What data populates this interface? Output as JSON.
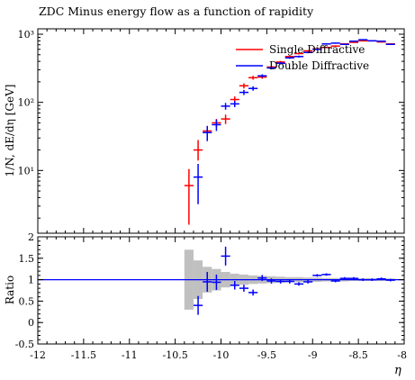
{
  "chart_data": [
    {
      "type": "scatter",
      "title": "ZDC Minus energy flow as a function of rapidity",
      "ylabel": "1/N, dE/dη [GeV]",
      "yscale": "log",
      "ylim": [
        1.2,
        1200
      ],
      "xlim": [
        -12,
        -8
      ],
      "y_ticks": [
        {
          "value": 10,
          "label": "10¹"
        },
        {
          "value": 100,
          "label": "10²"
        },
        {
          "value": 1000,
          "label": "10³"
        }
      ],
      "legend": {
        "placement": "top-right"
      },
      "series": [
        {
          "name": "Single Diffractive",
          "color": "#ff0000",
          "points": [
            {
              "x": -10.35,
              "y": 6,
              "ylo": 1.6,
              "yhi": 10.5
            },
            {
              "x": -10.25,
              "y": 20,
              "ylo": 14,
              "yhi": 28
            },
            {
              "x": -10.15,
              "y": 38,
              "ylo": 31,
              "yhi": 45
            },
            {
              "x": -10.05,
              "y": 50,
              "ylo": 43,
              "yhi": 57
            },
            {
              "x": -9.95,
              "y": 57,
              "ylo": 48,
              "yhi": 66
            },
            {
              "x": -9.85,
              "y": 110,
              "ylo": 98,
              "yhi": 122
            },
            {
              "x": -9.75,
              "y": 175,
              "ylo": 160,
              "yhi": 190
            },
            {
              "x": -9.65,
              "y": 230,
              "ylo": 215,
              "yhi": 245
            },
            {
              "x": -9.55,
              "y": 235,
              "ylo": 222,
              "yhi": 248
            },
            {
              "x": -9.45,
              "y": 330,
              "ylo": 315,
              "yhi": 345
            },
            {
              "x": -9.35,
              "y": 390,
              "ylo": 375,
              "yhi": 405
            },
            {
              "x": -9.25,
              "y": 470,
              "ylo": 455,
              "yhi": 485
            },
            {
              "x": -9.15,
              "y": 520,
              "ylo": 505,
              "yhi": 535
            },
            {
              "x": -9.05,
              "y": 570,
              "ylo": 555,
              "yhi": 585
            },
            {
              "x": -8.95,
              "y": 610,
              "ylo": 595,
              "yhi": 625
            },
            {
              "x": -8.85,
              "y": 640,
              "ylo": 625,
              "yhi": 655
            },
            {
              "x": -8.75,
              "y": 670,
              "ylo": 655,
              "yhi": 685
            },
            {
              "x": -8.65,
              "y": 720,
              "ylo": 705,
              "yhi": 735
            },
            {
              "x": -8.55,
              "y": 760,
              "ylo": 745,
              "yhi": 775
            },
            {
              "x": -8.45,
              "y": 800,
              "ylo": 785,
              "yhi": 815
            },
            {
              "x": -8.35,
              "y": 800,
              "ylo": 785,
              "yhi": 815
            },
            {
              "x": -8.25,
              "y": 770,
              "ylo": 755,
              "yhi": 785
            },
            {
              "x": -8.15,
              "y": 720,
              "ylo": 705,
              "yhi": 735
            }
          ]
        },
        {
          "name": "Double Diffractive",
          "color": "#0000ff",
          "points": [
            {
              "x": -10.25,
              "y": 8,
              "ylo": 3.2,
              "yhi": 12.5
            },
            {
              "x": -10.15,
              "y": 36,
              "ylo": 27,
              "yhi": 45
            },
            {
              "x": -10.05,
              "y": 47,
              "ylo": 38,
              "yhi": 56
            },
            {
              "x": -9.95,
              "y": 88,
              "ylo": 78,
              "yhi": 98
            },
            {
              "x": -9.85,
              "y": 95,
              "ylo": 85,
              "yhi": 105
            },
            {
              "x": -9.75,
              "y": 140,
              "ylo": 128,
              "yhi": 152
            },
            {
              "x": -9.65,
              "y": 160,
              "ylo": 148,
              "yhi": 172
            },
            {
              "x": -9.55,
              "y": 245,
              "ylo": 232,
              "yhi": 258
            },
            {
              "x": -9.45,
              "y": 320,
              "ylo": 305,
              "yhi": 335
            },
            {
              "x": -9.35,
              "y": 375,
              "ylo": 360,
              "yhi": 390
            },
            {
              "x": -9.25,
              "y": 450,
              "ylo": 435,
              "yhi": 465
            },
            {
              "x": -9.15,
              "y": 470,
              "ylo": 455,
              "yhi": 485
            },
            {
              "x": -9.05,
              "y": 540,
              "ylo": 525,
              "yhi": 555
            },
            {
              "x": -8.95,
              "y": 600,
              "ylo": 585,
              "yhi": 615
            },
            {
              "x": -8.85,
              "y": 720,
              "ylo": 705,
              "yhi": 735
            },
            {
              "x": -8.75,
              "y": 740,
              "ylo": 725,
              "yhi": 755
            },
            {
              "x": -8.65,
              "y": 710,
              "ylo": 695,
              "yhi": 725
            },
            {
              "x": -8.55,
              "y": 790,
              "ylo": 775,
              "yhi": 805
            },
            {
              "x": -8.45,
              "y": 830,
              "ylo": 815,
              "yhi": 845
            },
            {
              "x": -8.35,
              "y": 800,
              "ylo": 785,
              "yhi": 815
            },
            {
              "x": -8.25,
              "y": 790,
              "ylo": 775,
              "yhi": 805
            },
            {
              "x": -8.15,
              "y": 710,
              "ylo": 695,
              "yhi": 725
            }
          ]
        }
      ]
    },
    {
      "type": "scatter",
      "ylabel": "Ratio",
      "xlabel": "η",
      "ylim": [
        -0.5,
        2
      ],
      "xlim": [
        -12,
        -8
      ],
      "y_ticks": [
        {
          "value": -0.5,
          "label": "-0.5"
        },
        {
          "value": 0,
          "label": "0"
        },
        {
          "value": 0.5,
          "label": "0.5"
        },
        {
          "value": 1,
          "label": "1"
        },
        {
          "value": 1.5,
          "label": "1.5"
        },
        {
          "value": 2,
          "label": "2"
        }
      ],
      "x_ticks": [
        {
          "value": -12,
          "label": "-12"
        },
        {
          "value": -11.5,
          "label": "-11.5"
        },
        {
          "value": -11,
          "label": "-11"
        },
        {
          "value": -10.5,
          "label": "-10.5"
        },
        {
          "value": -10,
          "label": "-10"
        },
        {
          "value": -9.5,
          "label": "-9.5"
        },
        {
          "value": -9,
          "label": "-9"
        },
        {
          "value": -8.5,
          "label": "-8.5"
        },
        {
          "value": -8,
          "label": "-8"
        }
      ],
      "reference_line": {
        "y": 1,
        "color": "#0000ff"
      },
      "uncertainty_band": {
        "color": "#c0c0c0",
        "bins": [
          {
            "x0": -10.4,
            "x1": -10.3,
            "lo": 0.3,
            "hi": 1.7
          },
          {
            "x0": -10.3,
            "x1": -10.2,
            "lo": 0.55,
            "hi": 1.45
          },
          {
            "x0": -10.2,
            "x1": -10.1,
            "lo": 0.7,
            "hi": 1.3
          },
          {
            "x0": -10.1,
            "x1": -10.0,
            "lo": 0.75,
            "hi": 1.25
          },
          {
            "x0": -10.0,
            "x1": -9.9,
            "lo": 0.82,
            "hi": 1.18
          },
          {
            "x0": -9.9,
            "x1": -9.8,
            "lo": 0.86,
            "hi": 1.14
          },
          {
            "x0": -9.8,
            "x1": -9.7,
            "lo": 0.88,
            "hi": 1.12
          },
          {
            "x0": -9.7,
            "x1": -9.6,
            "lo": 0.9,
            "hi": 1.1
          },
          {
            "x0": -9.6,
            "x1": -9.5,
            "lo": 0.91,
            "hi": 1.09
          },
          {
            "x0": -9.5,
            "x1": -9.4,
            "lo": 0.92,
            "hi": 1.08
          },
          {
            "x0": -9.4,
            "x1": -9.3,
            "lo": 0.93,
            "hi": 1.07
          },
          {
            "x0": -9.3,
            "x1": -9.2,
            "lo": 0.94,
            "hi": 1.06
          },
          {
            "x0": -9.2,
            "x1": -9.1,
            "lo": 0.94,
            "hi": 1.06
          },
          {
            "x0": -9.1,
            "x1": -9.0,
            "lo": 0.95,
            "hi": 1.05
          },
          {
            "x0": -9.0,
            "x1": -8.9,
            "lo": 0.95,
            "hi": 1.05
          },
          {
            "x0": -8.9,
            "x1": -8.8,
            "lo": 0.96,
            "hi": 1.04
          },
          {
            "x0": -8.8,
            "x1": -8.7,
            "lo": 0.96,
            "hi": 1.04
          },
          {
            "x0": -8.7,
            "x1": -8.6,
            "lo": 0.96,
            "hi": 1.04
          },
          {
            "x0": -8.6,
            "x1": -8.5,
            "lo": 0.97,
            "hi": 1.03
          },
          {
            "x0": -8.5,
            "x1": -8.4,
            "lo": 0.97,
            "hi": 1.03
          },
          {
            "x0": -8.4,
            "x1": -8.3,
            "lo": 0.97,
            "hi": 1.03
          },
          {
            "x0": -8.3,
            "x1": -8.2,
            "lo": 0.97,
            "hi": 1.03
          },
          {
            "x0": -8.2,
            "x1": -8.1,
            "lo": 0.97,
            "hi": 1.03
          }
        ]
      },
      "series": [
        {
          "name": "Double Diffractive",
          "color": "#0000ff",
          "points": [
            {
              "x": -10.25,
              "y": 0.4,
              "ylo": 0.18,
              "yhi": 0.62
            },
            {
              "x": -10.15,
              "y": 0.95,
              "ylo": 0.72,
              "yhi": 1.18
            },
            {
              "x": -10.05,
              "y": 0.94,
              "ylo": 0.76,
              "yhi": 1.12
            },
            {
              "x": -9.95,
              "y": 1.55,
              "ylo": 1.33,
              "yhi": 1.77
            },
            {
              "x": -9.85,
              "y": 0.87,
              "ylo": 0.77,
              "yhi": 0.97
            },
            {
              "x": -9.75,
              "y": 0.8,
              "ylo": 0.72,
              "yhi": 0.88
            },
            {
              "x": -9.65,
              "y": 0.7,
              "ylo": 0.63,
              "yhi": 0.77
            },
            {
              "x": -9.55,
              "y": 1.04,
              "ylo": 0.97,
              "yhi": 1.11
            },
            {
              "x": -9.45,
              "y": 0.97,
              "ylo": 0.91,
              "yhi": 1.03
            },
            {
              "x": -9.35,
              "y": 0.96,
              "ylo": 0.91,
              "yhi": 1.01
            },
            {
              "x": -9.25,
              "y": 0.96,
              "ylo": 0.91,
              "yhi": 1.01
            },
            {
              "x": -9.15,
              "y": 0.9,
              "ylo": 0.86,
              "yhi": 0.94
            },
            {
              "x": -9.05,
              "y": 0.95,
              "ylo": 0.91,
              "yhi": 0.99
            },
            {
              "x": -8.95,
              "y": 1.1,
              "ylo": 1.07,
              "yhi": 1.13
            },
            {
              "x": -8.85,
              "y": 1.12,
              "ylo": 1.09,
              "yhi": 1.15
            },
            {
              "x": -8.75,
              "y": 0.97,
              "ylo": 0.94,
              "yhi": 1.0
            },
            {
              "x": -8.65,
              "y": 1.03,
              "ylo": 1.0,
              "yhi": 1.06
            },
            {
              "x": -8.55,
              "y": 1.03,
              "ylo": 1.0,
              "yhi": 1.06
            },
            {
              "x": -8.45,
              "y": 1.0,
              "ylo": 0.97,
              "yhi": 1.03
            },
            {
              "x": -8.35,
              "y": 1.0,
              "ylo": 0.97,
              "yhi": 1.03
            },
            {
              "x": -8.25,
              "y": 1.02,
              "ylo": 0.99,
              "yhi": 1.05
            },
            {
              "x": -8.15,
              "y": 0.99,
              "ylo": 0.96,
              "yhi": 1.02
            }
          ]
        }
      ]
    }
  ]
}
